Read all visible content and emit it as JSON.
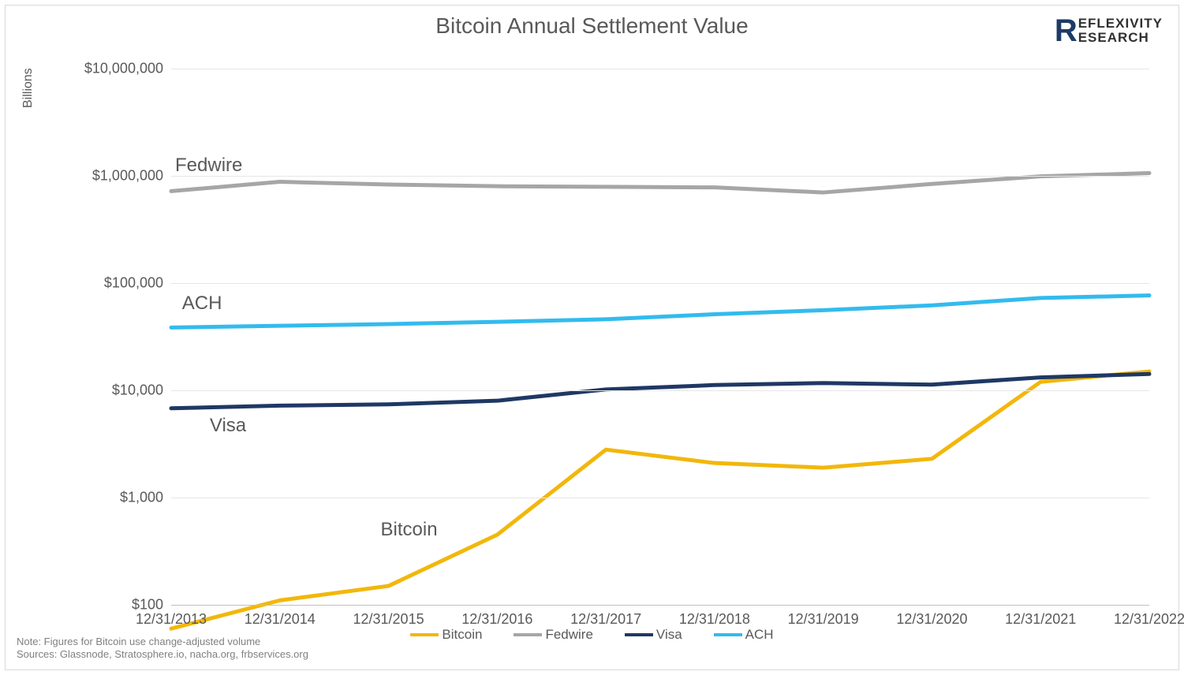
{
  "chart": {
    "type": "line",
    "title": "Bitcoin Annual Settlement Value",
    "title_fontsize": 28,
    "background_color": "#ffffff",
    "grid_color": "#e6e6e6",
    "axis_color": "#bfbfbf",
    "text_color": "#595959",
    "y_axis_title": "Billions",
    "y_scale": "log",
    "y_min": 100,
    "y_max": 10000000,
    "y_ticks": [
      {
        "value": 100,
        "label": "$100"
      },
      {
        "value": 1000,
        "label": "$1,000"
      },
      {
        "value": 10000,
        "label": "$10,000"
      },
      {
        "value": 100000,
        "label": "$100,000"
      },
      {
        "value": 1000000,
        "label": "$1,000,000"
      },
      {
        "value": 10000000,
        "label": "$10,000,000"
      }
    ],
    "x_labels": [
      "12/31/2013",
      "12/31/2014",
      "12/31/2015",
      "12/31/2016",
      "12/31/2017",
      "12/31/2018",
      "12/31/2019",
      "12/31/2020",
      "12/31/2021",
      "12/31/2022"
    ],
    "line_width": 5,
    "series": [
      {
        "name": "Bitcoin",
        "color": "#f2b70b",
        "values": [
          60,
          110,
          150,
          450,
          2800,
          2100,
          1900,
          2300,
          12000,
          15000
        ],
        "label_anchor": {
          "xi": 2.0,
          "y": 290
        },
        "label_offset": {
          "dx": -10,
          "dy": -46
        }
      },
      {
        "name": "Fedwire",
        "color": "#a6a6a6",
        "values": [
          720000,
          880000,
          830000,
          800000,
          790000,
          780000,
          700000,
          840000,
          990000,
          1060000
        ],
        "label_anchor": {
          "xi": 0.0,
          "y": 720000
        },
        "label_offset": {
          "dx": 5,
          "dy": -46
        }
      },
      {
        "name": "Visa",
        "color": "#1f3864",
        "values": [
          6800,
          7200,
          7400,
          8000,
          10200,
          11200,
          11700,
          11300,
          13200,
          14200
        ],
        "label_anchor": {
          "xi": 0.5,
          "y": 7200
        },
        "label_offset": {
          "dx": -20,
          "dy": 12
        }
      },
      {
        "name": "ACH",
        "color": "#33bbed",
        "values": [
          38500,
          40000,
          41500,
          43500,
          46000,
          51200,
          55900,
          62000,
          72600,
          76700
        ],
        "label_anchor": {
          "xi": 0.1,
          "y": 38500
        },
        "label_offset": {
          "dx": 0,
          "dy": -44
        }
      }
    ],
    "footnote_note": "Note: Figures for Bitcoin use change-adjusted volume",
    "footnote_sources": "Sources: Glassnode, Stratosphere.io, nacha.org, frbservices.org"
  },
  "logo": {
    "letter": "R",
    "line1": "EFLEXIVITY",
    "line2": "ESEARCH",
    "letter_color": "#1d3b66",
    "text_color": "#303030"
  }
}
